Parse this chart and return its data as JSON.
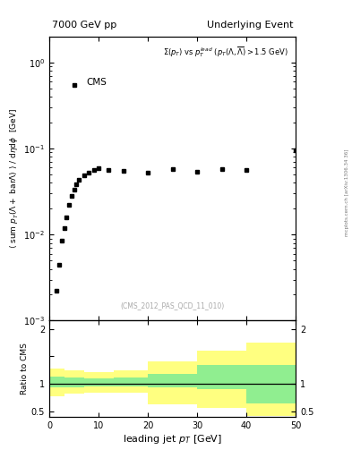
{
  "title_left": "7000 GeV pp",
  "title_right": "Underlying Event",
  "watermark": "(CMS_2012_PAS_QCD_11_010)",
  "side_label": "mcplots.cern.ch [arXiv:1306.34 36]",
  "ylabel_ratio": "Ratio to CMS",
  "xlabel": "leading jet p_{T} [GeV]",
  "cms_label": "CMS",
  "data_x": [
    1.5,
    2.0,
    2.5,
    3.0,
    3.5,
    4.0,
    4.5,
    5.0,
    5.5,
    6.0,
    7.0,
    8.0,
    9.0,
    10.0,
    12.0,
    15.0,
    20.0,
    25.0,
    30.0,
    35.0,
    40.0,
    50.0
  ],
  "data_y": [
    0.0022,
    0.0045,
    0.0085,
    0.012,
    0.016,
    0.022,
    0.028,
    0.033,
    0.038,
    0.043,
    0.049,
    0.053,
    0.057,
    0.059,
    0.057,
    0.055,
    0.053,
    0.058,
    0.054,
    0.058,
    0.056,
    0.095
  ],
  "xlim": [
    0,
    50
  ],
  "ylim_main": [
    0.001,
    2.0
  ],
  "ylim_ratio": [
    0.4,
    2.15
  ],
  "ratio_bins_x": [
    0,
    3,
    7,
    13,
    20,
    30,
    40,
    44,
    50
  ],
  "ratio_green_lo": [
    0.93,
    0.93,
    0.95,
    0.95,
    0.93,
    0.9,
    0.65,
    0.65
  ],
  "ratio_green_hi": [
    1.13,
    1.12,
    1.1,
    1.12,
    1.18,
    1.35,
    1.35,
    1.35
  ],
  "ratio_yellow_lo": [
    0.78,
    0.82,
    0.84,
    0.84,
    0.62,
    0.56,
    0.42,
    0.42
  ],
  "ratio_yellow_hi": [
    1.28,
    1.25,
    1.22,
    1.25,
    1.4,
    1.6,
    1.75,
    1.75
  ],
  "ratio_line": 1.0,
  "color_green": "#90EE90",
  "color_yellow": "#FFFF80",
  "marker_color": "black",
  "marker_style": "s",
  "marker_size": 3.5,
  "bg_color": "#ffffff"
}
